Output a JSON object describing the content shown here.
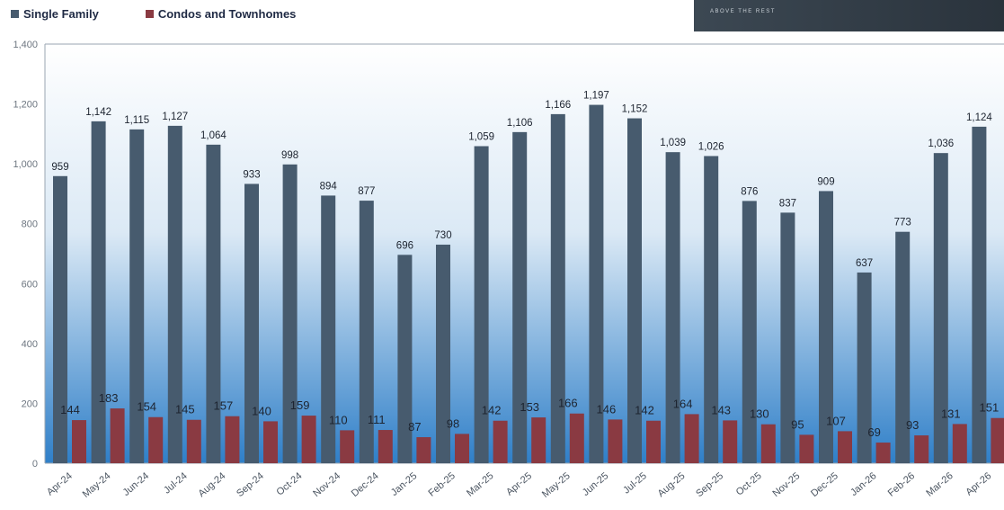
{
  "legend": {
    "single_family": "Single Family",
    "condos": "Condos and Townhomes"
  },
  "brand": {
    "tagline": "ABOVE THE REST"
  },
  "colors": {
    "single_family": "#475b6e",
    "condos": "#8a3a42",
    "plot_top": "#ffffff",
    "plot_bottom": "#2f7fc8"
  },
  "chart_data": {
    "type": "bar",
    "title": "",
    "xlabel": "",
    "ylabel": "",
    "ylim": [
      0,
      1400
    ],
    "yticks": [
      0,
      200,
      400,
      600,
      800,
      1000,
      1200,
      1400
    ],
    "ytick_labels": [
      "0",
      "200",
      "400",
      "600",
      "800",
      "1,000",
      "1,200",
      "1,400"
    ],
    "grid": false,
    "legend_position": "top-left",
    "categories": [
      "Apr-24",
      "May-24",
      "Jun-24",
      "Jul-24",
      "Aug-24",
      "Sep-24",
      "Oct-24",
      "Nov-24",
      "Dec-24",
      "Jan-25",
      "Feb-25",
      "Mar-25",
      "Apr-25",
      "May-25",
      "Jun-25",
      "Jul-25",
      "Aug-25",
      "Sep-25",
      "Oct-25",
      "Nov-25",
      "Dec-25",
      "Jan-26",
      "Feb-26",
      "Mar-26",
      "Apr-26"
    ],
    "series": [
      {
        "name": "Single Family",
        "values": [
          959,
          1142,
          1115,
          1127,
          1064,
          933,
          998,
          894,
          877,
          696,
          730,
          1059,
          1106,
          1166,
          1197,
          1152,
          1039,
          1026,
          876,
          837,
          909,
          637,
          773,
          1036,
          1124
        ],
        "labels": [
          "959",
          "1,142",
          "1,115",
          "1,127",
          "1,064",
          "933",
          "998",
          "894",
          "877",
          "696",
          "730",
          "1,059",
          "1,106",
          "1,166",
          "1,197",
          "1,152",
          "1,039",
          "1,026",
          "876",
          "837",
          "909",
          "637",
          "773",
          "1,036",
          "1,124"
        ]
      },
      {
        "name": "Condos and Townhomes",
        "values": [
          144,
          183,
          154,
          145,
          157,
          140,
          159,
          110,
          111,
          87,
          98,
          142,
          153,
          166,
          146,
          142,
          164,
          143,
          130,
          95,
          107,
          69,
          93,
          131,
          151
        ],
        "labels": [
          "144",
          "183",
          "154",
          "145",
          "157",
          "140",
          "159",
          "110",
          "111",
          "87",
          "98",
          "142",
          "153",
          "166",
          "146",
          "142",
          "164",
          "143",
          "130",
          "95",
          "107",
          "69",
          "93",
          "131",
          "151"
        ]
      }
    ]
  }
}
